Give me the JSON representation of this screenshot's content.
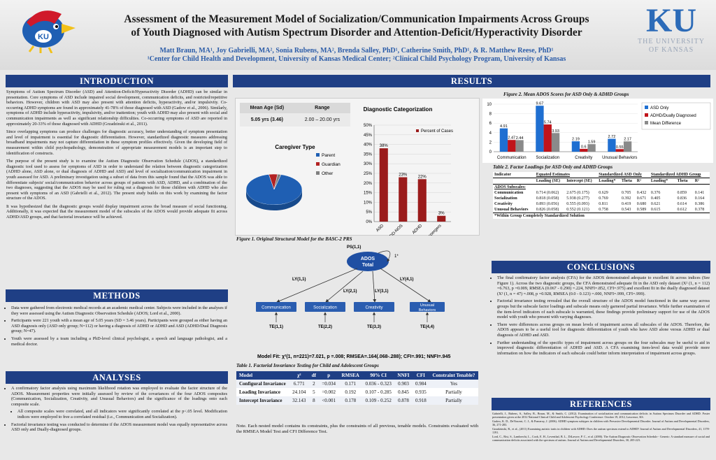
{
  "header": {
    "title_line1": "Assessment of the Measurement Model of Socialization/Communication Impairments Across Groups",
    "title_line2": "of Youth Diagnosed with Autism Spectrum Disorder and Attention-Deficit/Hyperactivity Disorder",
    "authors": "Matt Braun, MA¹, Joy Gabrielli, MA², Sonia Rubens, MA², Brenda Salley, PhD¹, Catherine Smith, PhD¹, & R. Matthew Reese, PhD¹",
    "affiliations": "¹Center for Child Health and Development, University of Kansas Medical Center; ²Clinical Child Psychology Program, University of Kansas",
    "ku_logo_text": "KU",
    "ku_watermark": "THE UNIVERSITY OF KANSAS",
    "jayhawk_text": "KU"
  },
  "sections": {
    "introduction": "INTRODUCTION",
    "methods": "METHODS",
    "analyses": "ANALYSES",
    "results": "RESULTS",
    "conclusions": "CONCLUSIONS",
    "references": "REFERENCES"
  },
  "introduction": {
    "p1": "Symptoms of Autism Spectrum Disorder (ASD) and Attention-Deficit/Hyperactivity Disorder (ADHD) can be similar in presentation. Core symptoms of ASD include impaired social development, communication deficits, and restricted/repetitive behaviors. However, children with ASD may also present with attention deficits, hyperactivity, and/or impulsivity. Co-occurring ADHD symptoms are found in approximately 41-78% of those diagnosed with ASD (Gadow et al., 2006). Similarly, symptoms of ADHD include hyperactivity, impulsivity, and/or inattention; youth with ADHD may also present with social and communication impairments as well as significant relationship difficulties. Co-occurring symptoms of ASD are reported in approximately 20-33% of those diagnosed with ADHD (Grzadzinski et al., 2011).",
    "p2": "Since overlapping symptoms can produce challenges for diagnostic accuracy, better understanding of symptom presentation and level of impairment is essential for diagnostic differentiation. However, standardized diagnostic measures addressing broadband impairments may not capture differentiation in these symptom profiles effectively. Given the developing field of measurement within child psychopathology, demonstration of appropriate measurement models is an important step to identification of constructs.",
    "p3": "The purpose of the present study is to examine the Autism Diagnostic Observation Schedule (ADOS), a standardized diagnostic tool used to assess for symptoms of ASD in order to understand the relation between diagnostic categorization (ADHD alone, ASD alone, or dual diagnosis of ADHD and ASD) and level of socialization/communication impairment in youth assessed for ASD. A preliminary investigation using a subset of data from this sample found that the ADOS was able to differentiate subjects' social/communication behavior across groups of patients with ASD, ADHD, and a combination of the two diagnoses, suggesting that the ADOS may be used for ruling out a diagnosis for those children with ADHD who also present with symptoms of an ASD (Gabrielli et al., 2012). The present study builds on this work by examining the factor structure of the ADOS.",
    "p4": "It was hypothesized that the diagnostic groups would display impairment across the broad measure of social functioning. Additionally, it was expected that the measurement model of the subscales of the ADOS would provide adequate fit across ADHD/ASD groups, and that factorial invariance will be achieved."
  },
  "methods": {
    "b1": "Data were gathered from electronic medical records at an academic medical center. Subjects were included in the analyses if they were assessed using the Autism Diagnostic Observation Schedule (ADOS; Lord et al., 2000).",
    "b2": "Participants were 221 youth with a mean age of 5.05 years (SD = 3.46 years). Participants were grouped as either having an ASD diagnosis only (ASD only group; N=112) or having a diagnosis of ADHD or ADHD and ASD (ADHD/Dual Diagnosis group; N=47).",
    "b3": "Youth were assessed by a team including a PhD-level clinical psychologist, a speech and language pathologist, and a medical doctor."
  },
  "analyses": {
    "b1": "A confirmatory factor analysis using maximum likelihood rotation was employed to evaluate the factor structure of the ADOS. Measurement properties were initially assessed by review of the covariances of the four ADOS composites (Communication, Socialization, Creativity, and Unusual Behaviors) and the significance of the loadings onto each composite scale.",
    "b1a": "All composite scales were correlated, and all indicators were significantly correlated at the p<.05 level. Modification indices were employed to free a correlated residual (i.e., Communication and Socialization).",
    "b2": "Factorial invariance testing was conducted to determine if the ADOS measurement model was equally representative across ASD only and Dually-diagnosed groups."
  },
  "demographics": {
    "col1": "Mean Age (Sd)",
    "col2": "Range",
    "val1": "5.05 yrs (3.46)",
    "val2": "2.00 – 20.00 yrs"
  },
  "pie": {
    "title": "Caregiver Type",
    "slices": [
      {
        "label": "Parent",
        "value": 93,
        "color": "#1f5fb3"
      },
      {
        "label": "Guardian",
        "value": 5,
        "color": "#b22222"
      },
      {
        "label": "Other",
        "value": 2,
        "color": "#7f7f7f"
      }
    ]
  },
  "chart_data": [
    {
      "type": "bar",
      "title": "Diagnostic Categorization",
      "categories": [
        "ASD",
        "PDD-NOS",
        "ADHD",
        "Aspergers"
      ],
      "series": [
        {
          "name": "Percent of Cases",
          "values": [
            38,
            23,
            22,
            3
          ]
        }
      ],
      "value_labels": [
        "38%",
        "23%",
        "22%",
        "3%"
      ],
      "ylim": [
        0,
        50
      ],
      "yticks": [
        "0%",
        "5%",
        "10%",
        "15%",
        "20%",
        "25%",
        "30%",
        "35%",
        "40%",
        "45%",
        "50%"
      ],
      "color": "#9b1c1c",
      "legend": "right"
    },
    {
      "type": "bar",
      "title": "Figure 2. Mean ADOS Scores for ASD Only & ADHD Groups",
      "categories": [
        "Communication",
        "Socialization",
        "Creativity",
        "Unusual Behaviors"
      ],
      "series": [
        {
          "name": "ASD Only",
          "values": [
            4.91,
            9.67,
            2.19,
            2.72
          ],
          "color": "#1f6fd1"
        },
        {
          "name": "ADHD/Dually Diagnosed",
          "values": [
            2.47,
            5.74,
            0.6,
            0.55
          ],
          "color": "#c0141b"
        },
        {
          "name": "Mean Difference",
          "values": [
            2.44,
            3.93,
            1.59,
            2.17
          ],
          "color": "#8a8a8a"
        }
      ],
      "ylim": [
        0,
        10
      ],
      "yticks": [
        "0",
        "2",
        "4",
        "6",
        "8",
        "10"
      ],
      "legend": "right"
    }
  ],
  "model": {
    "caption": "Figure 1. Original Structural Model for the BASC-2 PRS",
    "top": "ADOS Total",
    "ps": "PS(1,1)",
    "one": "1*",
    "ly1": "LY(1,1)",
    "ly2": "LY(2,1)",
    "ly3": "LY(3,1)",
    "ly4": "LY(4,1)",
    "boxes": [
      "Communication",
      "Socialization",
      "Creativity",
      "Unusual Behaviors"
    ],
    "te": [
      "TE(1,1)",
      "TE(2,2)",
      "TE(3,3)",
      "TE(4,4)"
    ],
    "fit": "Model Fit: χ²(1, n=221)=7.021, p =.008; RMSEA=.164(.068-.288); CFI=.991; NNFI=.945"
  },
  "table1": {
    "caption": "Table 1. Factorial Invariance Testing for Child and Adolescent Groups",
    "headers": [
      "Model",
      "χ²",
      "df",
      "p",
      "RMSEA",
      "90% CI",
      "NNFI",
      "CFI",
      "Constraint Tenable?"
    ],
    "rows": [
      [
        "Configural Invariance",
        "6.771",
        "2",
        "=0.034",
        "0.171",
        "0.036 - 0.323",
        "0.903",
        "0.984",
        "Yes"
      ],
      [
        "Loading Invariance",
        "24.104",
        "5",
        "=0.002",
        "0.192",
        "0.107 - 0.285",
        "0.845",
        "0.935",
        "Partially"
      ],
      [
        "Intercept Invariance",
        "32.143",
        "8",
        "<0.001",
        "0.178",
        "0.109 - 0.252",
        "0.878",
        "0.918",
        "Partially"
      ]
    ],
    "note": "Note. Each nested model contains its constraints, plus the constraints of all previous, tenable models. Constraints evaluated with the RMSEA Model Test and CFI Difference Test."
  },
  "table2": {
    "caption": "Table 2. Factor Loadings for ASD Only and ADHD Groups",
    "group1": "Equated Estimates",
    "group2": "Standardized ASD Only",
    "group3": "Standardized ADHD Group",
    "headers": [
      "Indicator",
      "Loading (SE)",
      "Intercept (SE)",
      "Loading*",
      "Theta",
      "R²",
      "Loading*",
      "Theta",
      "R²"
    ],
    "subhead": "ADOS Subscales:",
    "rows": [
      [
        "Communication",
        "0.714 (0.062)",
        "2.675 (0.175)",
        "0.629",
        "0.705",
        "0.432",
        "0.376",
        "0.859",
        "0.141"
      ],
      [
        "Socialization",
        "0.818 (0.058)",
        "5.938 (0.277)",
        "0.769",
        "0.392",
        "0.671",
        "0.405",
        "0.836",
        "0.164"
      ],
      [
        "Creativity",
        "0.893 (0.056)",
        "0.555 (0.093)",
        "0.811",
        "0.419",
        "0.680",
        "0.621",
        "0.614",
        "0.386"
      ],
      [
        "Unusual Behaviors",
        "0.826 (0.058)",
        "0.552 (0.121)",
        "0.758",
        "0.543",
        "0.589",
        "0.615",
        "0.612",
        "0.378"
      ]
    ],
    "footnote": "*Within Group Completely Standardized Solution"
  },
  "conclusions": {
    "b1": "The final confirmatory factor analysis (CFA) for the ADOS demonstrated adequate to excellent fit across indices (See Figure 1). Across the two diagnostic groups, the CFA demonstrated adequate fit in the ASD only dataset (X² (1, n = 112) =6.763, p =0.009, RMSEA (0.067 - 0.290) =.224, NNFI=.852, CFI=.975) and excellent fit in the dually diagnosed dataset (X² (1, n = 47) =.008, p =0.928, RMSEA (0.0 - 0.123) =.000, NNFI=.999, CFI=.999).",
    "b2": "Factorial invariance testing revealed that the overall structure of the ADOS model functioned in the same way across groups but the subscale factor loadings and subscale means only garnered partial invariance. While further examination of the item-level indicators of each subscale is warranted, these findings provide preliminary support for use of the ADOS model with youth who present with varying diagnoses.",
    "b3": "There were differences across groups on mean levels of impairment across all subscales of the ADOS. Therefore, the ADOS appears to be a useful tool for diagnostic differentiation of youth who have ASD alone versus ADHD or dual diagnosis of ADHD and ASD.",
    "b4": "Further understanding of the specific types of impairment across groups on the four subscales may be useful to aid in improved diagnostic differentiation of ADHD and ASD. A CFA examining item-level data would provide more information on how the indicators of each subscale could better inform interpretation of impairment across groups."
  },
  "references": {
    "r1": "Gabrielli, J., Rubens, S., Salley, B., Braun, M., & Smith, C. (2012). Examination of socialization and communication deficits in Autism Spectrum Disorder and ADHD. Poster presentation given at the 2012 National Clinical Child and Adolescent Psychology Conference: October 19, 2012, Lawrence, KS.",
    "r2": "Gadow, K. D., DeVincent, C. J., & Pomeroy, J. (2006). ADHD symptom subtypes in children with Pervasive Developmental Disorder. Journal of Autism and Developmental Disorders, 36, 271-283.",
    "r3": "Grzadzinski, R., et al., (2011) Examining autistic traits in children with ADHD: Does the autism spectrum extend to ADHD? Journal of Autism and Developmental Disorders, 41, 1178-1191.",
    "r4": "Lord, C., Risi, S., Lambrecht, L., Cook, E. H., Leventhal, B. L., DiLavore, P. C., et al. (2000). The Autism Diagnostic Observation Schedule - Generic: A standard measure of social and communication deficits associated with the spectrum of autism. Journal of Autism and Developmental Disorders, 30, 205-223."
  }
}
